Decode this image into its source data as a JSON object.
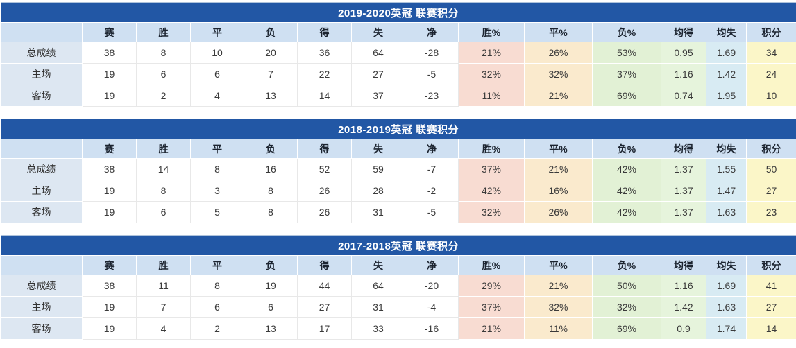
{
  "columns": [
    "",
    "赛",
    "胜",
    "平",
    "负",
    "得",
    "失",
    "净",
    "胜%",
    "平%",
    "负%",
    "均得",
    "均失",
    "积分"
  ],
  "column_keys": [
    "row-label",
    "matches",
    "wins",
    "draws",
    "losses",
    "goals-for",
    "goals-against",
    "goal-diff",
    "win-pct",
    "draw-pct",
    "loss-pct",
    "avg-goals-for",
    "avg-goals-against",
    "points"
  ],
  "colors": {
    "title_bar_bg": "#2257a5",
    "title_text": "#ffffff",
    "header_row_bg": "#cfe0f2",
    "row_label_bg": "#dde7f2",
    "win_pct_bg": "#f8dcd2",
    "draw_pct_bg": "#faeacd",
    "loss_pct_bg": "#e2f1d5",
    "avg_goals_for_bg": "#e6f4dc",
    "avg_goals_against_bg": "#d8ebf3",
    "points_bg": "#fbf6c8"
  },
  "value_column_backgrounds": [
    null,
    null,
    null,
    null,
    null,
    null,
    null,
    "#f8dcd2",
    "#faeacd",
    "#e2f1d5",
    "#e6f4dc",
    "#d8ebf3",
    "#fbf6c8"
  ],
  "tables": [
    {
      "title": "2019-2020英冠 联赛积分",
      "rows": [
        {
          "label": "总成绩",
          "values": [
            "38",
            "8",
            "10",
            "20",
            "36",
            "64",
            "-28",
            "21%",
            "26%",
            "53%",
            "0.95",
            "1.69",
            "34"
          ]
        },
        {
          "label": "主场",
          "values": [
            "19",
            "6",
            "6",
            "7",
            "22",
            "27",
            "-5",
            "32%",
            "32%",
            "37%",
            "1.16",
            "1.42",
            "24"
          ]
        },
        {
          "label": "客场",
          "values": [
            "19",
            "2",
            "4",
            "13",
            "14",
            "37",
            "-23",
            "11%",
            "21%",
            "69%",
            "0.74",
            "1.95",
            "10"
          ]
        }
      ]
    },
    {
      "title": "2018-2019英冠 联赛积分",
      "rows": [
        {
          "label": "总成绩",
          "values": [
            "38",
            "14",
            "8",
            "16",
            "52",
            "59",
            "-7",
            "37%",
            "21%",
            "42%",
            "1.37",
            "1.55",
            "50"
          ]
        },
        {
          "label": "主场",
          "values": [
            "19",
            "8",
            "3",
            "8",
            "26",
            "28",
            "-2",
            "42%",
            "16%",
            "42%",
            "1.37",
            "1.47",
            "27"
          ]
        },
        {
          "label": "客场",
          "values": [
            "19",
            "6",
            "5",
            "8",
            "26",
            "31",
            "-5",
            "32%",
            "26%",
            "42%",
            "1.37",
            "1.63",
            "23"
          ]
        }
      ]
    },
    {
      "title": "2017-2018英冠 联赛积分",
      "rows": [
        {
          "label": "总成绩",
          "values": [
            "38",
            "11",
            "8",
            "19",
            "44",
            "64",
            "-20",
            "29%",
            "21%",
            "50%",
            "1.16",
            "1.69",
            "41"
          ]
        },
        {
          "label": "主场",
          "values": [
            "19",
            "7",
            "6",
            "6",
            "27",
            "31",
            "-4",
            "37%",
            "32%",
            "32%",
            "1.42",
            "1.63",
            "27"
          ]
        },
        {
          "label": "客场",
          "values": [
            "19",
            "4",
            "2",
            "13",
            "17",
            "33",
            "-16",
            "21%",
            "11%",
            "69%",
            "0.9",
            "1.74",
            "14"
          ]
        }
      ]
    }
  ]
}
